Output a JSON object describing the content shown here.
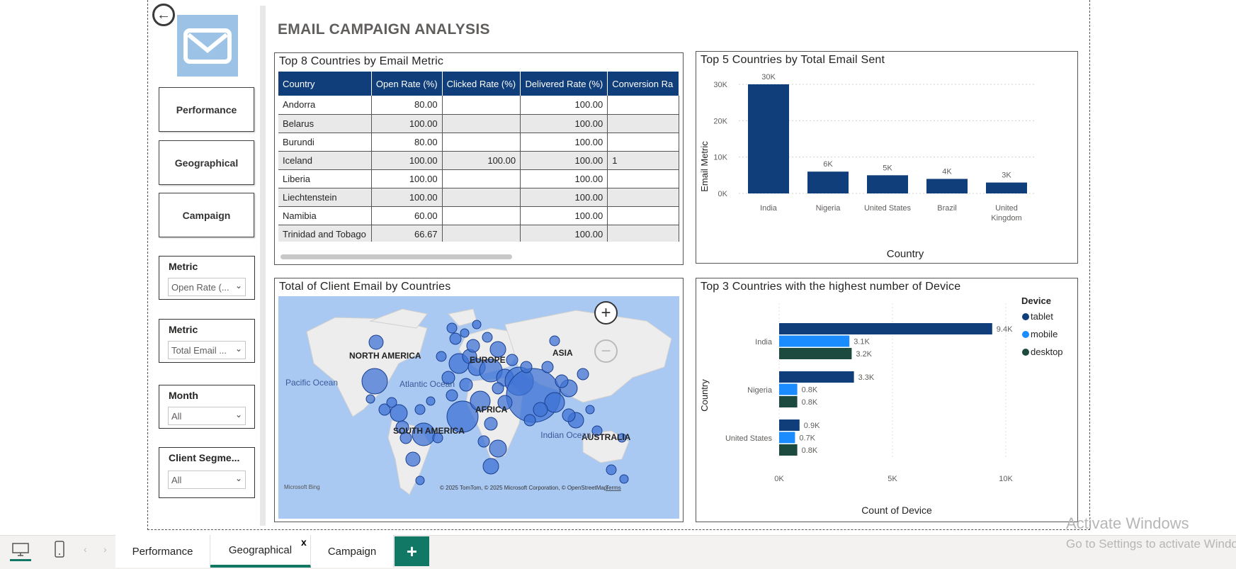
{
  "sidebar": {
    "nav": [
      "Performance",
      "Geographical",
      "Campaign"
    ],
    "slicers": [
      {
        "label": "Metric",
        "value": "Open Rate (..."
      },
      {
        "label": "Metric",
        "value": "Total Email ..."
      },
      {
        "label": "Month",
        "value": "All"
      },
      {
        "label": "Client Segme...",
        "value": "All"
      }
    ]
  },
  "page": {
    "title": "EMAIL CAMPAIGN ANALYSIS"
  },
  "table": {
    "title": "Top 8 Countries by Email Metric",
    "columns": [
      "Country",
      "Open Rate (%)",
      "Clicked Rate (%)",
      "Delivered Rate (%)",
      "Conversion Ra"
    ],
    "rows": [
      [
        "Andorra",
        "80.00",
        "",
        "100.00",
        ""
      ],
      [
        "Belarus",
        "100.00",
        "",
        "100.00",
        ""
      ],
      [
        "Burundi",
        "80.00",
        "",
        "100.00",
        ""
      ],
      [
        "Iceland",
        "100.00",
        "100.00",
        "100.00",
        "1"
      ],
      [
        "Liberia",
        "100.00",
        "",
        "100.00",
        ""
      ],
      [
        "Liechtenstein",
        "100.00",
        "",
        "100.00",
        ""
      ],
      [
        "Namibia",
        "60.00",
        "",
        "100.00",
        ""
      ],
      [
        "Trinidad and Tobago",
        "66.67",
        "",
        "100.00",
        ""
      ]
    ]
  },
  "bar_chart": {
    "title": "Top 5 Countries by Total Email Sent",
    "ylabel": "Email Metric",
    "xlabel": "Country",
    "yticks": [
      "30K",
      "20K",
      "10K",
      "0K"
    ],
    "bar_color": "#0f3e7a"
  },
  "map": {
    "title": "Total of Client Email by Countries",
    "labels": [
      "NORTH AMERICA",
      "EUROPE",
      "ASIA",
      "AFRICA",
      "SOUTH AMERICA",
      "AUSTRALIA",
      "Pacific Ocean",
      "Atlantic Ocean",
      "Indian Ocean"
    ],
    "attribution": "© 2025 TomTom, © 2025 Microsoft Corporation, © OpenStreetMap",
    "terms": "Terms",
    "brand": "Microsoft Bing",
    "zoom_in": "+",
    "zoom_out": "−"
  },
  "device_chart": {
    "title": "Top 3 Countries with the highest number of Device",
    "ylabel": "Country",
    "xlabel": "Count of Device",
    "xticks": [
      "0K",
      "5K",
      "10K"
    ],
    "legend_title": "Device",
    "colors": {
      "tablet": "#0f3e7a",
      "mobile": "#1a8cff",
      "desktop": "#1c4a3f"
    }
  },
  "chart_data": [
    {
      "type": "bar",
      "title": "Top 5 Countries by Total Email Sent",
      "xlabel": "Country",
      "ylabel": "Email Metric",
      "categories": [
        "India",
        "Nigeria",
        "United States",
        "Brazil",
        "United Kingdom"
      ],
      "values": [
        30000,
        6000,
        5000,
        4000,
        3000
      ],
      "data_labels": [
        "30K",
        "6K",
        "5K",
        "4K",
        "3K"
      ],
      "ylim": [
        0,
        30000
      ],
      "grid": true
    },
    {
      "type": "bar",
      "orientation": "horizontal",
      "title": "Top 3 Countries with the highest number of Device",
      "xlabel": "Count of Device",
      "ylabel": "Country",
      "categories": [
        "India",
        "Nigeria",
        "United States"
      ],
      "series": [
        {
          "name": "tablet",
          "values": [
            9400,
            3300,
            900
          ],
          "labels": [
            "9.4K",
            "3.3K",
            "0.9K"
          ]
        },
        {
          "name": "mobile",
          "values": [
            3100,
            800,
            700
          ],
          "labels": [
            "3.1K",
            "0.8K",
            "0.7K"
          ]
        },
        {
          "name": "desktop",
          "values": [
            3200,
            800,
            800
          ],
          "labels": [
            "3.2K",
            "0.8K",
            "0.8K"
          ]
        }
      ],
      "xlim": [
        0,
        10000
      ],
      "legend": "top-right"
    }
  ],
  "tabs": {
    "items": [
      "Performance",
      "Geographical",
      "Campaign"
    ],
    "active": "Geographical",
    "close": "x",
    "add": "+"
  },
  "watermark": {
    "line1": "Activate Windows",
    "line2": "Go to Settings to activate Windows."
  }
}
